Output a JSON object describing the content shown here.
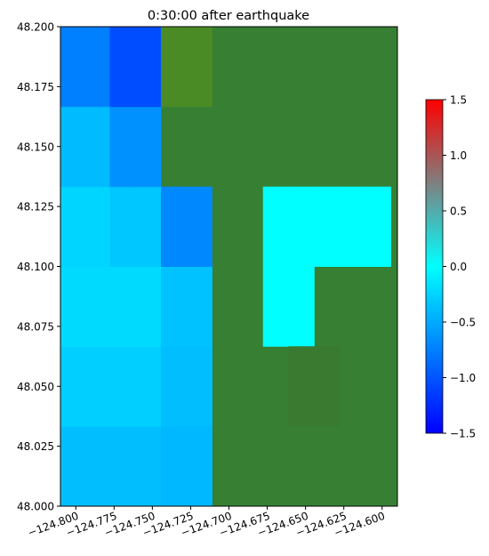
{
  "chart_data": {
    "type": "heatmap",
    "title": "0:30:00 after earthquake",
    "xlabel": "",
    "ylabel": "",
    "xlim": [
      -124.81,
      -124.59
    ],
    "ylim": [
      48.0,
      48.2
    ],
    "x_ticks": [
      -124.8,
      -124.775,
      -124.75,
      -124.725,
      -124.7,
      -124.675,
      -124.65,
      -124.625,
      -124.6
    ],
    "x_tick_labels": [
      "−124.800",
      "−124.775",
      "−124.750",
      "−124.725",
      "−124.700",
      "−124.675",
      "−124.650",
      "−124.625",
      "−124.600"
    ],
    "y_ticks": [
      48.0,
      48.025,
      48.05,
      48.075,
      48.1,
      48.125,
      48.15,
      48.175,
      48.2
    ],
    "y_tick_labels": [
      "48.000",
      "48.025",
      "48.050",
      "48.075",
      "48.100",
      "48.125",
      "48.150",
      "48.175",
      "48.200"
    ],
    "cell_edges_x": [
      -124.81,
      -124.7944,
      -124.7778,
      -124.7611,
      -124.7444,
      -124.7278,
      -124.7111,
      -124.6944,
      -124.6778,
      -124.6611,
      -124.6444,
      -124.6278,
      -124.6111,
      -124.5944
    ],
    "cell_edges_y": [
      48.0,
      48.0333,
      48.0667,
      48.1,
      48.1333,
      48.1667,
      48.2
    ],
    "land_value": null,
    "values_rows_bottom_to_top": [
      [
        -0.38,
        -0.38,
        -0.38,
        -0.38,
        -0.42,
        -0.42,
        null,
        null,
        null,
        null,
        null,
        null,
        null,
        null
      ],
      [
        -0.28,
        -0.28,
        -0.28,
        -0.28,
        -0.38,
        -0.38,
        null,
        null,
        null,
        null,
        null,
        null,
        null,
        null
      ],
      [
        -0.22,
        -0.22,
        -0.22,
        -0.22,
        -0.36,
        -0.36,
        null,
        null,
        0.0,
        0.0,
        null,
        null,
        null,
        null
      ],
      [
        -0.25,
        -0.25,
        -0.33,
        -0.33,
        -0.7,
        -0.7,
        null,
        null,
        0.0,
        0.0,
        0.0,
        0.0,
        0.0,
        0.0
      ],
      [
        -0.4,
        -0.4,
        -0.65,
        -0.65,
        null,
        null,
        null,
        null,
        null,
        null,
        null,
        null,
        null,
        null
      ],
      [
        -0.75,
        -0.75,
        -1.05,
        -1.05,
        "land-light",
        "land-light",
        null,
        null,
        null,
        null,
        null,
        null,
        null,
        null
      ]
    ],
    "land_patches": [
      {
        "x": [
          -124.6611,
          -124.6278
        ],
        "y": [
          48.0333,
          48.0667
        ],
        "color": "#3a7a30"
      }
    ],
    "colorbar": {
      "vmin": -1.5,
      "vmax": 1.5,
      "ticks": [
        -1.5,
        -1.0,
        -0.5,
        0.0,
        0.5,
        1.0,
        1.5
      ],
      "tick_labels": [
        "−1.5",
        "−1.0",
        "−0.5",
        "0.0",
        "0.5",
        "1.0",
        "1.5"
      ],
      "stops": [
        {
          "v": -1.5,
          "color": "#0000ff"
        },
        {
          "v": 0.0,
          "color": "#00ffff"
        },
        {
          "v": 1.5,
          "color": "#ff0000"
        }
      ]
    },
    "colors": {
      "land": "#367f33",
      "land_light": "#4a8b25"
    }
  }
}
